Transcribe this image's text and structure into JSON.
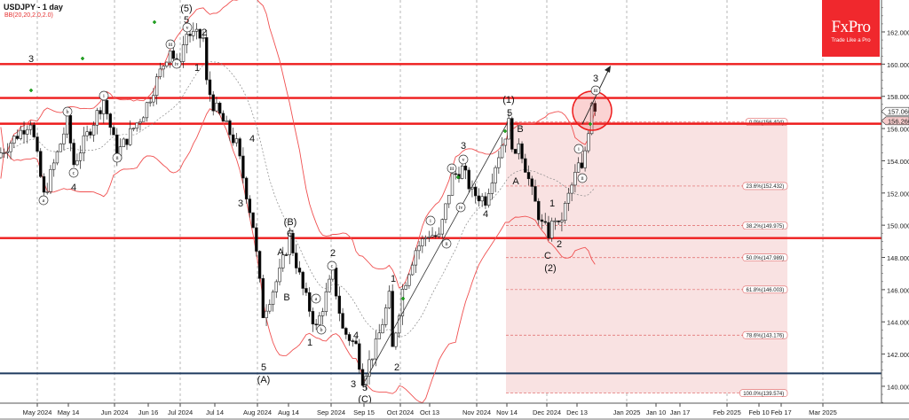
{
  "header": {
    "title": "USDJPY - 1 day",
    "indicator": "BB(20,20,2.0,2.0)"
  },
  "logo": {
    "brand": "FxPro",
    "tagline": "Trade Like a Pro"
  },
  "colors": {
    "level_line": "#ee1c1c",
    "support_line": "#1f3a5f",
    "bollinger": "#f05050",
    "fib_zone": "#f9e2e2",
    "logo_bg": "#f0282d"
  },
  "chart_data": {
    "type": "candlestick",
    "symbol": "USDJPY",
    "timeframe": "1 day",
    "ylim": [
      138.6,
      163.8
    ],
    "y_ticks": [
      "162.000",
      "160.000",
      "158.000",
      "156.000",
      "154.000",
      "152.000",
      "150.000",
      "148.000",
      "146.000",
      "144.000",
      "142.000",
      "140.000"
    ],
    "x_ticks": [
      "May 2024",
      "May 14",
      "Jun 2024",
      "Jun 16",
      "Jul 2024",
      "Jul 14",
      "Aug 2024",
      "Aug 14",
      "Sep 2024",
      "Sep 15",
      "Oct 2024",
      "Oct 13",
      "Nov 2024",
      "Nov 14",
      "Dec 2024",
      "Dec 13",
      "Jan 2025",
      "Jan 10",
      "Jan 17",
      "Feb 2025",
      "Feb 10",
      "Feb 17",
      "Mar 2025"
    ],
    "approx_close_path": [
      [
        "2024-04-16",
        154.5
      ],
      [
        "2024-04-29",
        156.5
      ],
      [
        "2024-05-03",
        151.8
      ],
      [
        "2024-05-14",
        156.4
      ],
      [
        "2024-05-16",
        153.8
      ],
      [
        "2024-05-29",
        157.8
      ],
      [
        "2024-06-04",
        154.4
      ],
      [
        "2024-06-14",
        157.0
      ],
      [
        "2024-06-26",
        161.0
      ],
      [
        "2024-06-28",
        159.8
      ],
      [
        "2024-07-03",
        161.9
      ],
      [
        "2024-07-10",
        161.6
      ],
      [
        "2024-07-11",
        158.8
      ],
      [
        "2024-07-15",
        157.5
      ],
      [
        "2024-07-24",
        155.0
      ],
      [
        "2024-07-31",
        150.0
      ],
      [
        "2024-08-05",
        144.5
      ],
      [
        "2024-08-12",
        147.0
      ],
      [
        "2024-08-15",
        149.3
      ],
      [
        "2024-08-21",
        146.0
      ],
      [
        "2024-08-27",
        143.6
      ],
      [
        "2024-09-03",
        147.0
      ],
      [
        "2024-09-06",
        143.5
      ],
      [
        "2024-09-12",
        142.5
      ],
      [
        "2024-09-16",
        140.5
      ],
      [
        "2024-09-20",
        142.5
      ],
      [
        "2024-09-26",
        145.5
      ],
      [
        "2024-09-27",
        142.3
      ],
      [
        "2024-10-02",
        146.0
      ],
      [
        "2024-10-08",
        148.5
      ],
      [
        "2024-10-14",
        149.5
      ],
      [
        "2024-10-17",
        149.2
      ],
      [
        "2024-10-23",
        153.0
      ],
      [
        "2024-10-28",
        153.5
      ],
      [
        "2024-10-31",
        152.0
      ],
      [
        "2024-11-06",
        151.6
      ],
      [
        "2024-11-11",
        153.8
      ],
      [
        "2024-11-15",
        156.3
      ],
      [
        "2024-11-19",
        154.0
      ],
      [
        "2024-11-20",
        155.3
      ],
      [
        "2024-11-26",
        152.0
      ],
      [
        "2024-11-29",
        150.0
      ],
      [
        "2024-12-03",
        149.5
      ],
      [
        "2024-12-05",
        150.5
      ],
      [
        "2024-12-06",
        149.8
      ],
      [
        "2024-12-11",
        151.8
      ],
      [
        "2024-12-16",
        153.7
      ],
      [
        "2024-12-17",
        153.3
      ],
      [
        "2024-12-19",
        156.0
      ],
      [
        "2024-12-20",
        157.8
      ],
      [
        "2024-12-23",
        157.066
      ]
    ],
    "horizontal_levels": [
      160.0,
      157.9,
      156.3,
      149.2
    ],
    "support_level": 140.8,
    "price_tags": [
      {
        "label": "157.066",
        "kind": "current"
      },
      {
        "label": "156.260",
        "kind": "level"
      }
    ],
    "fibonacci": {
      "from": 139.574,
      "to": 156.404,
      "levels": [
        {
          "ratio": 0.0,
          "price": 156.404,
          "label": "0.0%(156.404)"
        },
        {
          "ratio": 0.236,
          "price": 152.432,
          "label": "23.6%(152.432)"
        },
        {
          "ratio": 0.382,
          "price": 149.975,
          "label": "38.2%(149.975)"
        },
        {
          "ratio": 0.5,
          "price": 147.989,
          "label": "50.0%(147.989)"
        },
        {
          "ratio": 0.618,
          "price": 146.003,
          "label": "61.8%(146.003)"
        },
        {
          "ratio": 0.786,
          "price": 143.176,
          "label": "78.6%(143.176)"
        },
        {
          "ratio": 1.0,
          "price": 139.574,
          "label": "100.0%(139.574)"
        }
      ]
    },
    "wave_labels": [
      {
        "text": "3",
        "circled": false
      },
      {
        "text": "(5)",
        "circled": false
      },
      {
        "text": "5",
        "circled": false
      },
      {
        "text": "v",
        "circled": true
      },
      {
        "text": "iii",
        "circled": true
      },
      {
        "text": "iv",
        "circled": true
      },
      {
        "text": "2",
        "circled": false
      },
      {
        "text": "1",
        "circled": false
      },
      {
        "text": "a",
        "circled": true
      },
      {
        "text": "b",
        "circled": true
      },
      {
        "text": "c",
        "circled": true
      },
      {
        "text": "4",
        "circled": false
      },
      {
        "text": "i",
        "circled": true
      },
      {
        "text": "ii",
        "circled": true
      },
      {
        "text": "4",
        "circled": false
      },
      {
        "text": "3",
        "circled": false
      },
      {
        "text": "(B)",
        "circled": false
      },
      {
        "text": "C",
        "circled": false
      },
      {
        "text": "A",
        "circled": false
      },
      {
        "text": "B",
        "circled": false
      },
      {
        "text": "5",
        "circled": false
      },
      {
        "text": "(A)",
        "circled": false
      },
      {
        "text": "a",
        "circled": true
      },
      {
        "text": "b",
        "circled": true
      },
      {
        "text": "1",
        "circled": false
      },
      {
        "text": "2",
        "circled": false
      },
      {
        "text": "c",
        "circled": true
      },
      {
        "text": "4",
        "circled": false
      },
      {
        "text": "3",
        "circled": false
      },
      {
        "text": "5",
        "circled": false
      },
      {
        "text": "(C)",
        "circled": false
      },
      {
        "text": "1",
        "circled": false
      },
      {
        "text": "2",
        "circled": false
      },
      {
        "text": "i",
        "circled": true
      },
      {
        "text": "ii",
        "circled": true
      },
      {
        "text": "iii",
        "circled": true
      },
      {
        "text": "v",
        "circled": true
      },
      {
        "text": "3",
        "circled": false
      },
      {
        "text": "iv",
        "circled": true
      },
      {
        "text": "4",
        "circled": false
      },
      {
        "text": "(1)",
        "circled": false
      },
      {
        "text": "5",
        "circled": false
      },
      {
        "text": "B",
        "circled": false
      },
      {
        "text": "A",
        "circled": false
      },
      {
        "text": "1",
        "circled": false
      },
      {
        "text": "2",
        "circled": false
      },
      {
        "text": "C",
        "circled": false
      },
      {
        "text": "(2)",
        "circled": false
      },
      {
        "text": "i",
        "circled": true
      },
      {
        "text": "ii",
        "circled": true
      },
      {
        "text": "3",
        "circled": false
      },
      {
        "text": "iii",
        "circled": true
      }
    ]
  }
}
